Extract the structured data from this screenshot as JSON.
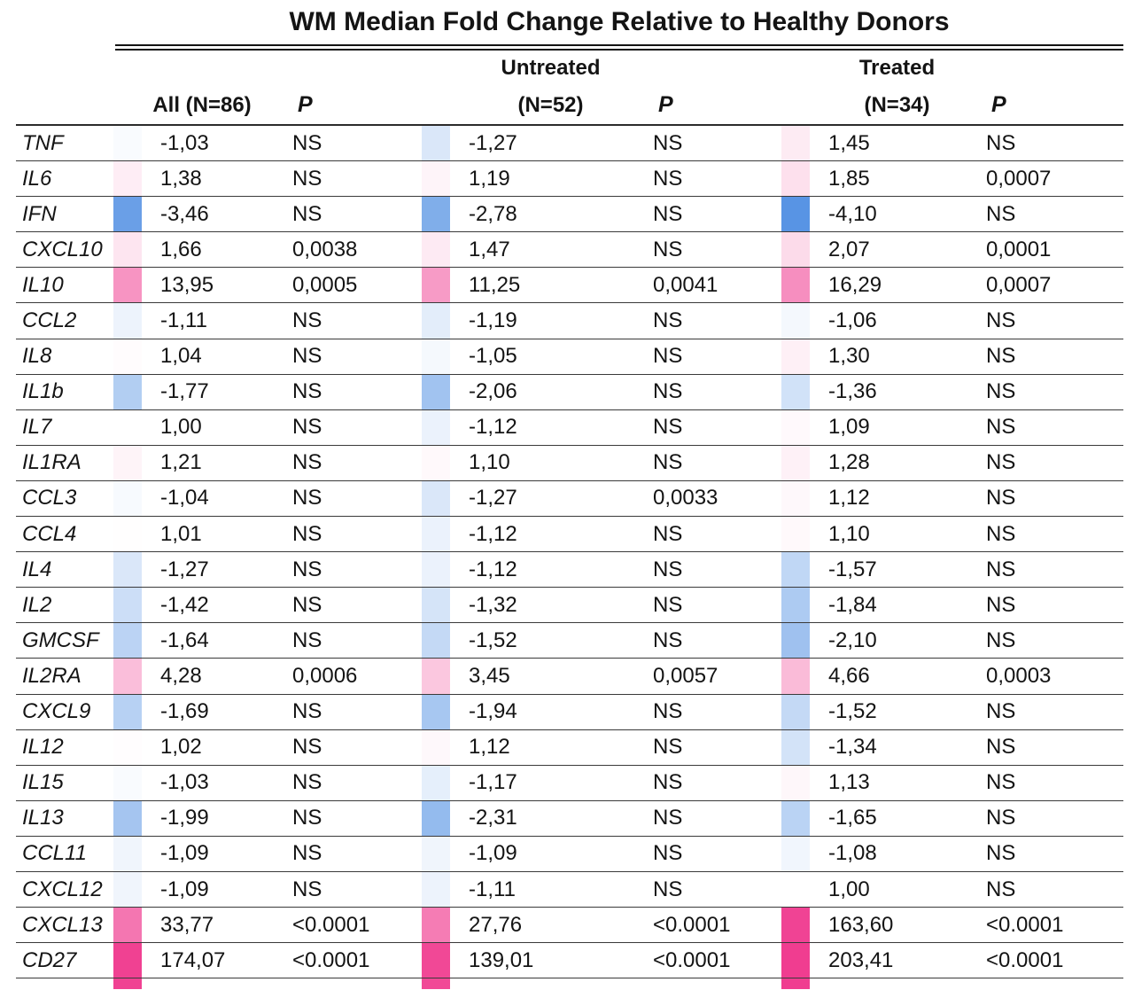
{
  "title": "WM Median Fold Change Relative to Healthy Donors",
  "header": {
    "all_label": "All (N=86)",
    "untreated_group": "Untreated",
    "untreated_n": "(N=52)",
    "treated_group": "Treated",
    "treated_n": "(N=34)",
    "p_label": "P"
  },
  "colors": {
    "positive_max": "#f03d90",
    "negative_max": "#4d8de2",
    "neutral": "#ffffff"
  },
  "chart_data": {
    "type": "heatmap",
    "title": "WM Median Fold Change Relative to Healthy Donors",
    "columns": [
      "All (N=86)",
      "Untreated (N=52)",
      "Treated (N=34)"
    ],
    "p_column_label": "P",
    "rows": [
      {
        "gene": "TNF",
        "cells": [
          {
            "fold": "-1,03",
            "p": "NS"
          },
          {
            "fold": "-1,27",
            "p": "NS"
          },
          {
            "fold": "1,45",
            "p": "NS"
          }
        ]
      },
      {
        "gene": "IL6",
        "cells": [
          {
            "fold": "1,38",
            "p": "NS"
          },
          {
            "fold": "1,19",
            "p": "NS"
          },
          {
            "fold": "1,85",
            "p": "0,0007"
          }
        ]
      },
      {
        "gene": "IFN",
        "cells": [
          {
            "fold": "-3,46",
            "p": "NS"
          },
          {
            "fold": "-2,78",
            "p": "NS"
          },
          {
            "fold": "-4,10",
            "p": "NS"
          }
        ]
      },
      {
        "gene": "CXCL10",
        "cells": [
          {
            "fold": "1,66",
            "p": "0,0038"
          },
          {
            "fold": "1,47",
            "p": "NS"
          },
          {
            "fold": "2,07",
            "p": "0,0001"
          }
        ]
      },
      {
        "gene": "IL10",
        "cells": [
          {
            "fold": "13,95",
            "p": "0,0005"
          },
          {
            "fold": "11,25",
            "p": "0,0041"
          },
          {
            "fold": "16,29",
            "p": "0,0007"
          }
        ]
      },
      {
        "gene": "CCL2",
        "cells": [
          {
            "fold": "-1,11",
            "p": "NS"
          },
          {
            "fold": "-1,19",
            "p": "NS"
          },
          {
            "fold": "-1,06",
            "p": "NS"
          }
        ]
      },
      {
        "gene": "IL8",
        "cells": [
          {
            "fold": "1,04",
            "p": "NS"
          },
          {
            "fold": "-1,05",
            "p": "NS"
          },
          {
            "fold": "1,30",
            "p": "NS"
          }
        ]
      },
      {
        "gene": "IL1b",
        "cells": [
          {
            "fold": "-1,77",
            "p": "NS"
          },
          {
            "fold": "-2,06",
            "p": "NS"
          },
          {
            "fold": "-1,36",
            "p": "NS"
          }
        ]
      },
      {
        "gene": "IL7",
        "cells": [
          {
            "fold": "1,00",
            "p": "NS"
          },
          {
            "fold": "-1,12",
            "p": "NS"
          },
          {
            "fold": "1,09",
            "p": "NS"
          }
        ]
      },
      {
        "gene": "IL1RA",
        "cells": [
          {
            "fold": "1,21",
            "p": "NS"
          },
          {
            "fold": "1,10",
            "p": "NS"
          },
          {
            "fold": "1,28",
            "p": "NS"
          }
        ]
      },
      {
        "gene": "CCL3",
        "cells": [
          {
            "fold": "-1,04",
            "p": "NS"
          },
          {
            "fold": "-1,27",
            "p": "0,0033"
          },
          {
            "fold": "1,12",
            "p": "NS"
          }
        ]
      },
      {
        "gene": "CCL4",
        "cells": [
          {
            "fold": "1,01",
            "p": "NS"
          },
          {
            "fold": "-1,12",
            "p": "NS"
          },
          {
            "fold": "1,10",
            "p": "NS"
          }
        ]
      },
      {
        "gene": "IL4",
        "cells": [
          {
            "fold": "-1,27",
            "p": "NS"
          },
          {
            "fold": "-1,12",
            "p": "NS"
          },
          {
            "fold": "-1,57",
            "p": "NS"
          }
        ]
      },
      {
        "gene": "IL2",
        "cells": [
          {
            "fold": "-1,42",
            "p": "NS"
          },
          {
            "fold": "-1,32",
            "p": "NS"
          },
          {
            "fold": "-1,84",
            "p": "NS"
          }
        ]
      },
      {
        "gene": "GMCSF",
        "cells": [
          {
            "fold": "-1,64",
            "p": "NS"
          },
          {
            "fold": "-1,52",
            "p": "NS"
          },
          {
            "fold": "-2,10",
            "p": "NS"
          }
        ]
      },
      {
        "gene": "IL2RA",
        "cells": [
          {
            "fold": "4,28",
            "p": "0,0006"
          },
          {
            "fold": "3,45",
            "p": "0,0057"
          },
          {
            "fold": "4,66",
            "p": "0,0003"
          }
        ]
      },
      {
        "gene": "CXCL9",
        "cells": [
          {
            "fold": "-1,69",
            "p": "NS"
          },
          {
            "fold": "-1,94",
            "p": "NS"
          },
          {
            "fold": "-1,52",
            "p": "NS"
          }
        ]
      },
      {
        "gene": "IL12",
        "cells": [
          {
            "fold": "1,02",
            "p": "NS"
          },
          {
            "fold": "1,12",
            "p": "NS"
          },
          {
            "fold": "-1,34",
            "p": "NS"
          }
        ]
      },
      {
        "gene": "IL15",
        "cells": [
          {
            "fold": "-1,03",
            "p": "NS"
          },
          {
            "fold": "-1,17",
            "p": "NS"
          },
          {
            "fold": "1,13",
            "p": "NS"
          }
        ]
      },
      {
        "gene": "IL13",
        "cells": [
          {
            "fold": "-1,99",
            "p": "NS"
          },
          {
            "fold": "-2,31",
            "p": "NS"
          },
          {
            "fold": "-1,65",
            "p": "NS"
          }
        ]
      },
      {
        "gene": "CCL11",
        "cells": [
          {
            "fold": "-1,09",
            "p": "NS"
          },
          {
            "fold": "-1,09",
            "p": "NS"
          },
          {
            "fold": "-1,08",
            "p": "NS"
          }
        ]
      },
      {
        "gene": "CXCL12",
        "cells": [
          {
            "fold": "-1,09",
            "p": "NS"
          },
          {
            "fold": "-1,11",
            "p": "NS"
          },
          {
            "fold": "1,00",
            "p": "NS"
          }
        ]
      },
      {
        "gene": "CXCL13",
        "cells": [
          {
            "fold": "33,77",
            "p": "<0.0001"
          },
          {
            "fold": "27,76",
            "p": "<0.0001"
          },
          {
            "fold": "163,60",
            "p": "<0.0001"
          }
        ]
      },
      {
        "gene": "CD27",
        "cells": [
          {
            "fold": "174,07",
            "p": "<0.0001"
          },
          {
            "fold": "139,01",
            "p": "<0.0001"
          },
          {
            "fold": "203,41",
            "p": "<0.0001"
          }
        ]
      }
    ]
  }
}
